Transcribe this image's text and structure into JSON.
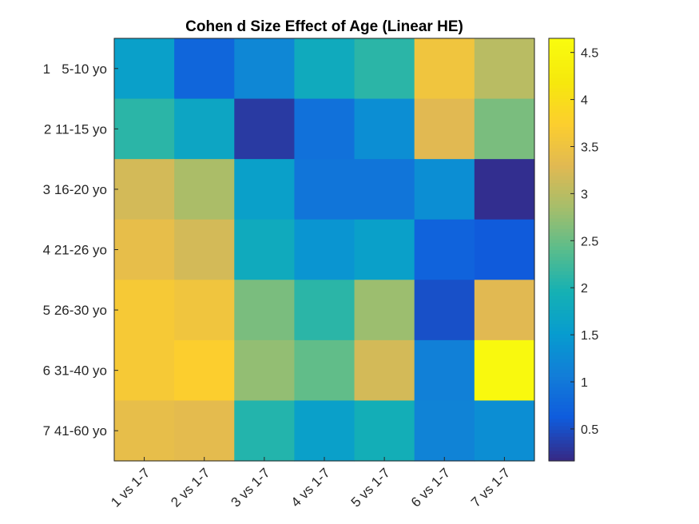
{
  "chart_data": {
    "type": "heatmap",
    "title": "Cohen d Size Effect of Age (Linear HE)",
    "xlabel": "",
    "ylabel": "",
    "x_categories": [
      "1 vs 1-7",
      "2 vs 1-7",
      "3 vs 1-7",
      "4 vs 1-7",
      "5 vs 1-7",
      "6 vs 1-7",
      "7 vs 1-7"
    ],
    "y_categories": [
      "1   5-10 yo",
      "2 11-15 yo",
      "3 16-20 yo",
      "4 21-26 yo",
      "5 26-30 yo",
      "6 31-40 yo",
      "7 41-60 yo"
    ],
    "values": [
      [
        1.6,
        0.75,
        1.2,
        1.8,
        2.1,
        3.55,
        3.0
      ],
      [
        2.1,
        1.7,
        0.3,
        0.9,
        1.3,
        3.3,
        2.6
      ],
      [
        3.2,
        2.9,
        1.6,
        0.95,
        0.95,
        1.3,
        0.2
      ],
      [
        3.4,
        3.2,
        1.8,
        1.4,
        1.6,
        0.7,
        0.6
      ],
      [
        3.65,
        3.55,
        2.6,
        2.1,
        2.8,
        0.5,
        3.3
      ],
      [
        3.65,
        3.75,
        2.75,
        2.45,
        3.2,
        1.1,
        4.6
      ],
      [
        3.4,
        3.35,
        2.05,
        1.6,
        1.9,
        1.15,
        1.3
      ]
    ],
    "colorbar": {
      "colormap": "parula",
      "clim": [
        0.16,
        4.65
      ],
      "ticks": [
        0.5,
        1,
        1.5,
        2,
        2.5,
        3,
        3.5,
        4,
        4.5
      ],
      "tick_labels": [
        "0.5",
        "1",
        "1.5",
        "2",
        "2.5",
        "3",
        "3.5",
        "4",
        "4.5"
      ],
      "placement": "right"
    },
    "grid": false
  }
}
